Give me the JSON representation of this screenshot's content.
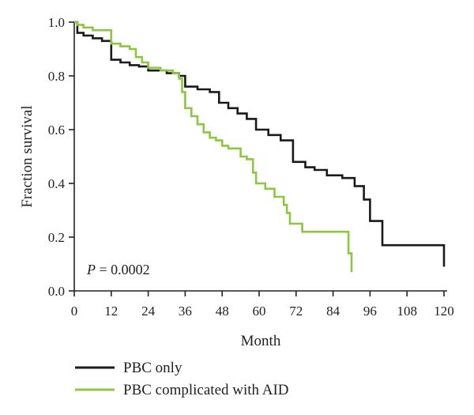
{
  "chart_data": {
    "type": "line",
    "xlabel": "Month",
    "ylabel": "Fraction survival",
    "xlim": [
      0,
      120
    ],
    "ylim": [
      0,
      1.0
    ],
    "xticks": [
      "0",
      "12",
      "24",
      "36",
      "48",
      "60",
      "72",
      "84",
      "96",
      "108",
      "120"
    ],
    "yticks": [
      "0.0",
      "0.2",
      "0.4",
      "0.6",
      "0.8",
      "1.0"
    ],
    "grid": false,
    "legend_position": "bottom-left",
    "annotation": {
      "prefix": "P",
      "value": " = 0.0002"
    },
    "series": [
      {
        "name": "PBC only",
        "color": "#1a1a1a",
        "steps": [
          [
            0,
            1.0
          ],
          [
            1,
            0.96
          ],
          [
            3,
            0.95
          ],
          [
            6,
            0.94
          ],
          [
            9,
            0.93
          ],
          [
            12,
            0.86
          ],
          [
            15,
            0.85
          ],
          [
            18,
            0.84
          ],
          [
            21,
            0.835
          ],
          [
            24,
            0.82
          ],
          [
            30,
            0.81
          ],
          [
            34,
            0.8
          ],
          [
            36,
            0.76
          ],
          [
            40,
            0.75
          ],
          [
            44,
            0.74
          ],
          [
            47,
            0.7
          ],
          [
            50,
            0.68
          ],
          [
            53,
            0.66
          ],
          [
            56,
            0.64
          ],
          [
            59,
            0.6
          ],
          [
            63,
            0.58
          ],
          [
            67,
            0.56
          ],
          [
            71,
            0.48
          ],
          [
            75,
            0.46
          ],
          [
            78,
            0.45
          ],
          [
            82,
            0.43
          ],
          [
            87,
            0.42
          ],
          [
            91,
            0.39
          ],
          [
            94,
            0.34
          ],
          [
            96,
            0.26
          ],
          [
            100,
            0.17
          ],
          [
            120,
            0.09
          ]
        ],
        "end_x": 120
      },
      {
        "name": "PBC complicated with AID",
        "color": "#8dc63f",
        "steps": [
          [
            0,
            1.0
          ],
          [
            1,
            0.99
          ],
          [
            3,
            0.98
          ],
          [
            6,
            0.97
          ],
          [
            12,
            0.92
          ],
          [
            15,
            0.91
          ],
          [
            18,
            0.9
          ],
          [
            20,
            0.87
          ],
          [
            22,
            0.85
          ],
          [
            24,
            0.83
          ],
          [
            28,
            0.82
          ],
          [
            32,
            0.81
          ],
          [
            34,
            0.79
          ],
          [
            35,
            0.74
          ],
          [
            36,
            0.68
          ],
          [
            38,
            0.65
          ],
          [
            40,
            0.62
          ],
          [
            42,
            0.59
          ],
          [
            44,
            0.57
          ],
          [
            46,
            0.56
          ],
          [
            48,
            0.54
          ],
          [
            50,
            0.53
          ],
          [
            54,
            0.5
          ],
          [
            56,
            0.49
          ],
          [
            58,
            0.44
          ],
          [
            59,
            0.4
          ],
          [
            62,
            0.38
          ],
          [
            65,
            0.35
          ],
          [
            68,
            0.32
          ],
          [
            69,
            0.29
          ],
          [
            70,
            0.25
          ],
          [
            74,
            0.22
          ],
          [
            84,
            0.22
          ],
          [
            89,
            0.14
          ],
          [
            90,
            0.07
          ]
        ],
        "end_x": 90
      }
    ]
  }
}
